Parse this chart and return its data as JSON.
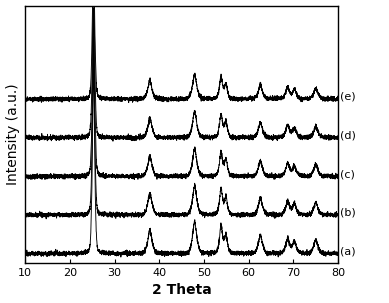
{
  "xlabel": "2 Theta",
  "ylabel": "Intensity (a.u.)",
  "xlim": [
    10,
    80
  ],
  "ylim": [
    -0.2,
    5.8
  ],
  "x_ticks": [
    10,
    20,
    30,
    40,
    50,
    60,
    70,
    80
  ],
  "labels": [
    "(a)",
    "(b)",
    "(c)",
    "(d)",
    "(e)"
  ],
  "offsets": [
    0.0,
    0.9,
    1.8,
    2.7,
    3.6
  ],
  "peak_positions": [
    25.3,
    37.9,
    47.9,
    53.8,
    54.9,
    62.6,
    68.7,
    70.2,
    75.0
  ],
  "peak_heights": [
    4.5,
    0.55,
    0.75,
    0.65,
    0.45,
    0.42,
    0.35,
    0.28,
    0.32
  ],
  "peak_widths_g": [
    0.3,
    0.55,
    0.55,
    0.4,
    0.4,
    0.55,
    0.5,
    0.5,
    0.55
  ],
  "peak_widths_l": [
    0.2,
    0.4,
    0.4,
    0.3,
    0.3,
    0.4,
    0.38,
    0.38,
    0.4
  ],
  "noise_level": 0.025,
  "background_color": "#ffffff",
  "line_color": "#000000",
  "label_fontsize": 8,
  "axis_label_fontsize": 10,
  "tick_fontsize": 8,
  "scales": [
    1.0,
    0.92,
    0.87,
    0.83,
    0.78
  ]
}
